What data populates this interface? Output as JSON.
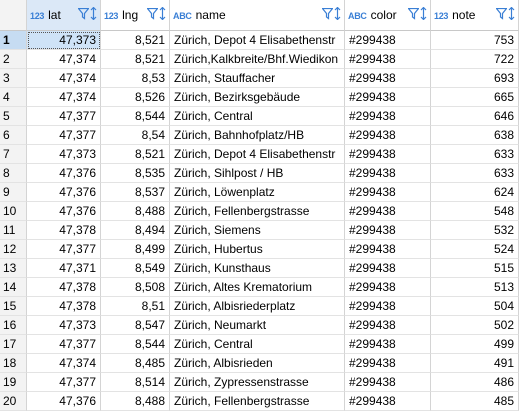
{
  "columns": [
    {
      "type": "123",
      "name": "lat"
    },
    {
      "type": "123",
      "name": "lng"
    },
    {
      "type": "ABC",
      "name": "name"
    },
    {
      "type": "ABC",
      "name": "color"
    },
    {
      "type": "123",
      "name": "note"
    }
  ],
  "rows": [
    {
      "n": "1",
      "lat": "47,373",
      "lng": "8,521",
      "name": "Zürich, Depot 4 Elisabethenstr",
      "color": "#299438",
      "note": "753"
    },
    {
      "n": "2",
      "lat": "47,374",
      "lng": "8,521",
      "name": "Zürich,Kalkbreite/Bhf.Wiedikon",
      "color": "#299438",
      "note": "722"
    },
    {
      "n": "3",
      "lat": "47,374",
      "lng": "8,53",
      "name": "Zürich, Stauffacher",
      "color": "#299438",
      "note": "693"
    },
    {
      "n": "4",
      "lat": "47,374",
      "lng": "8,526",
      "name": "Zürich, Bezirksgebäude",
      "color": "#299438",
      "note": "665"
    },
    {
      "n": "5",
      "lat": "47,377",
      "lng": "8,544",
      "name": "Zürich, Central",
      "color": "#299438",
      "note": "646"
    },
    {
      "n": "6",
      "lat": "47,377",
      "lng": "8,54",
      "name": "Zürich, Bahnhofplatz/HB",
      "color": "#299438",
      "note": "638"
    },
    {
      "n": "7",
      "lat": "47,373",
      "lng": "8,521",
      "name": "Zürich, Depot 4 Elisabethenstr",
      "color": "#299438",
      "note": "633"
    },
    {
      "n": "8",
      "lat": "47,376",
      "lng": "8,535",
      "name": "Zürich, Sihlpost / HB",
      "color": "#299438",
      "note": "633"
    },
    {
      "n": "9",
      "lat": "47,376",
      "lng": "8,537",
      "name": "Zürich, Löwenplatz",
      "color": "#299438",
      "note": "624"
    },
    {
      "n": "10",
      "lat": "47,376",
      "lng": "8,488",
      "name": "Zürich, Fellenbergstrasse",
      "color": "#299438",
      "note": "548"
    },
    {
      "n": "11",
      "lat": "47,378",
      "lng": "8,494",
      "name": "Zürich, Siemens",
      "color": "#299438",
      "note": "532"
    },
    {
      "n": "12",
      "lat": "47,377",
      "lng": "8,499",
      "name": "Zürich, Hubertus",
      "color": "#299438",
      "note": "524"
    },
    {
      "n": "13",
      "lat": "47,371",
      "lng": "8,549",
      "name": "Zürich, Kunsthaus",
      "color": "#299438",
      "note": "515"
    },
    {
      "n": "14",
      "lat": "47,378",
      "lng": "8,508",
      "name": "Zürich, Altes Krematorium",
      "color": "#299438",
      "note": "513"
    },
    {
      "n": "15",
      "lat": "47,378",
      "lng": "8,51",
      "name": "Zürich, Albisriederplatz",
      "color": "#299438",
      "note": "504"
    },
    {
      "n": "16",
      "lat": "47,373",
      "lng": "8,547",
      "name": "Zürich, Neumarkt",
      "color": "#299438",
      "note": "502"
    },
    {
      "n": "17",
      "lat": "47,377",
      "lng": "8,544",
      "name": "Zürich, Central",
      "color": "#299438",
      "note": "499"
    },
    {
      "n": "18",
      "lat": "47,374",
      "lng": "8,485",
      "name": "Zürich, Albisrieden",
      "color": "#299438",
      "note": "491"
    },
    {
      "n": "19",
      "lat": "47,377",
      "lng": "8,514",
      "name": "Zürich, Zypressenstrasse",
      "color": "#299438",
      "note": "486"
    },
    {
      "n": "20",
      "lat": "47,376",
      "lng": "8,488",
      "name": "Zürich, Fellenbergstrasse",
      "color": "#299438",
      "note": "485"
    }
  ],
  "accent": "#3a7fd5",
  "selected_row_color": "#c6dcf2"
}
